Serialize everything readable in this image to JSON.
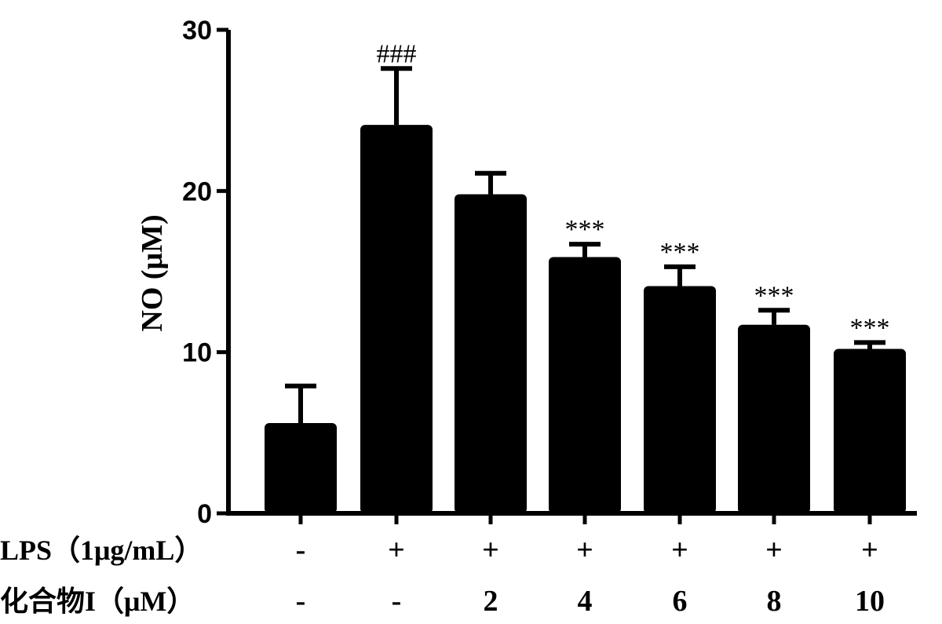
{
  "chart_data": {
    "type": "bar",
    "ylabel": "NO (μM)",
    "ylim": [
      0,
      30
    ],
    "yticks": [
      "0",
      "10",
      "20",
      "30"
    ],
    "grid": false,
    "bar_color": "#000000",
    "values": [
      5.6,
      24.1,
      19.8,
      15.9,
      14.1,
      11.7,
      10.2
    ],
    "errors": [
      2.3,
      3.5,
      1.3,
      0.8,
      1.2,
      0.9,
      0.4
    ],
    "annotations": [
      "",
      "###",
      "",
      "***",
      "***",
      "***",
      "***"
    ],
    "rows": [
      {
        "label": "LPS（1μg/mL）",
        "values": [
          "-",
          "+",
          "+",
          "+",
          "+",
          "+",
          "+"
        ]
      },
      {
        "label": "化合物I（μM）",
        "values": [
          "-",
          "-",
          "2",
          "4",
          "6",
          "8",
          "10"
        ]
      }
    ]
  }
}
